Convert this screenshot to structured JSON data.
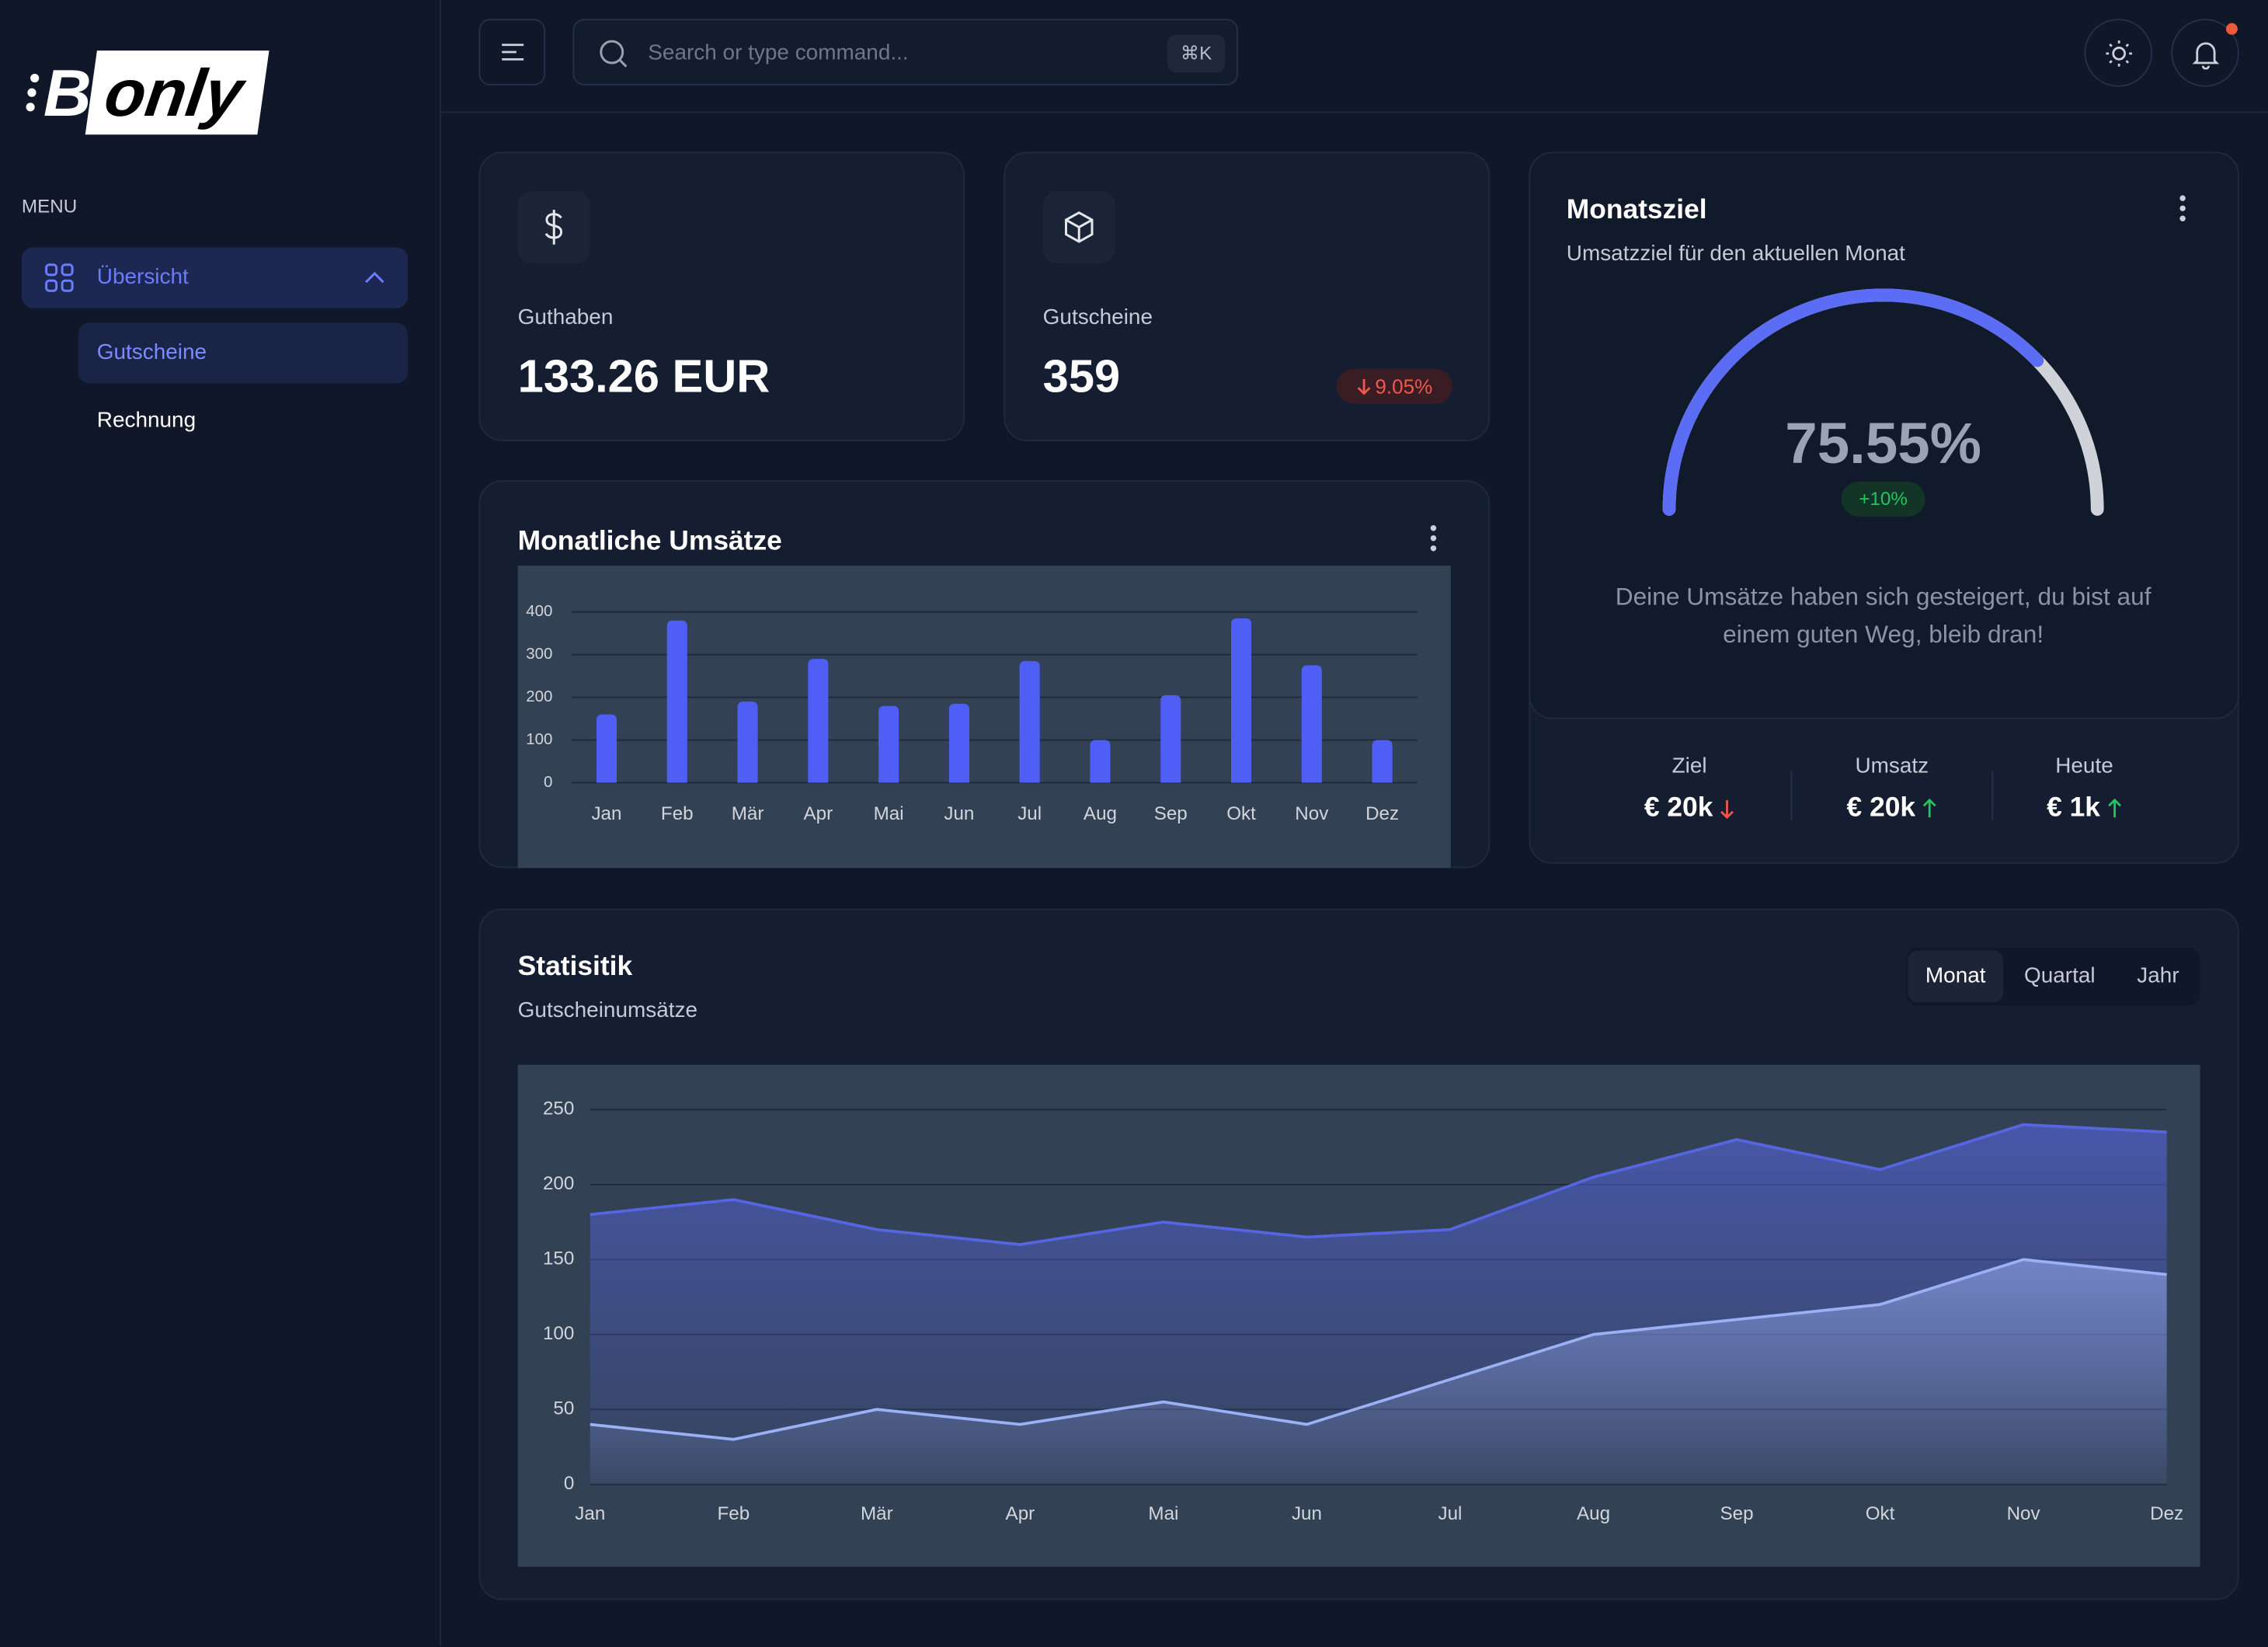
{
  "sidebar": {
    "logo": [
      "B",
      "only"
    ],
    "menu_label": "MENU",
    "items": [
      {
        "label": "Übersicht",
        "children": [
          "Gutscheine",
          "Rechnung"
        ]
      }
    ]
  },
  "header": {
    "search_placeholder": "Search or type command...",
    "shortcut": "⌘K"
  },
  "cards": [
    {
      "label": "Guthaben",
      "value": "133.26 EUR"
    },
    {
      "label": "Gutscheine",
      "value": "359",
      "change": "9.05%"
    }
  ],
  "goal": {
    "badge": "+10%",
    "message": "Deine Umsätze haben sich gesteigert, du bist auf einem guten Weg, bleib dran!",
    "stats": [
      {
        "label": "Ziel",
        "value": "€ 20k",
        "trend": "down"
      },
      {
        "label": "Umsatz",
        "value": "€ 20k",
        "trend": "up"
      },
      {
        "label": "Heute",
        "value": "€ 1k",
        "trend": "up"
      }
    ]
  },
  "statistics": {
    "tabs": [
      "Monat",
      "Quartal",
      "Jahr"
    ]
  },
  "chart_data": [
    {
      "type": "bar",
      "title": "Monatliche Umsätze",
      "categories": [
        "Jan",
        "Feb",
        "Mär",
        "Apr",
        "Mai",
        "Jun",
        "Jul",
        "Aug",
        "Sep",
        "Okt",
        "Nov",
        "Dez"
      ],
      "values": [
        160,
        380,
        190,
        290,
        180,
        185,
        285,
        100,
        205,
        385,
        275,
        100
      ],
      "color": "#4f5ff5",
      "ylim": [
        0,
        400
      ],
      "yticks": [
        0,
        100,
        200,
        300,
        400
      ],
      "grid": true
    },
    {
      "type": "area",
      "title": "Statisitik",
      "subtitle": "Gutscheinumsätze",
      "categories": [
        "Jan",
        "Feb",
        "Mär",
        "Apr",
        "Mai",
        "Jun",
        "Jul",
        "Aug",
        "Sep",
        "Okt",
        "Nov",
        "Dez"
      ],
      "series": [
        {
          "color": "#5566e0",
          "values": [
            180,
            190,
            170,
            160,
            175,
            165,
            170,
            205,
            230,
            210,
            240,
            235
          ]
        },
        {
          "color": "#9bb0f5",
          "values": [
            40,
            30,
            50,
            40,
            55,
            40,
            70,
            100,
            110,
            120,
            150,
            140
          ]
        }
      ],
      "ylim": [
        0,
        250
      ],
      "yticks": [
        0,
        50,
        100,
        150,
        200,
        250
      ],
      "grid": true
    },
    {
      "type": "gauge",
      "title": "Monatsziel",
      "subtitle": "Umsatzziel für den aktuellen Monat",
      "values": [
        75.55
      ],
      "value_labels": [
        "75.55%"
      ],
      "ylim": [
        0,
        100
      ],
      "color": "#5b6cf5"
    }
  ]
}
